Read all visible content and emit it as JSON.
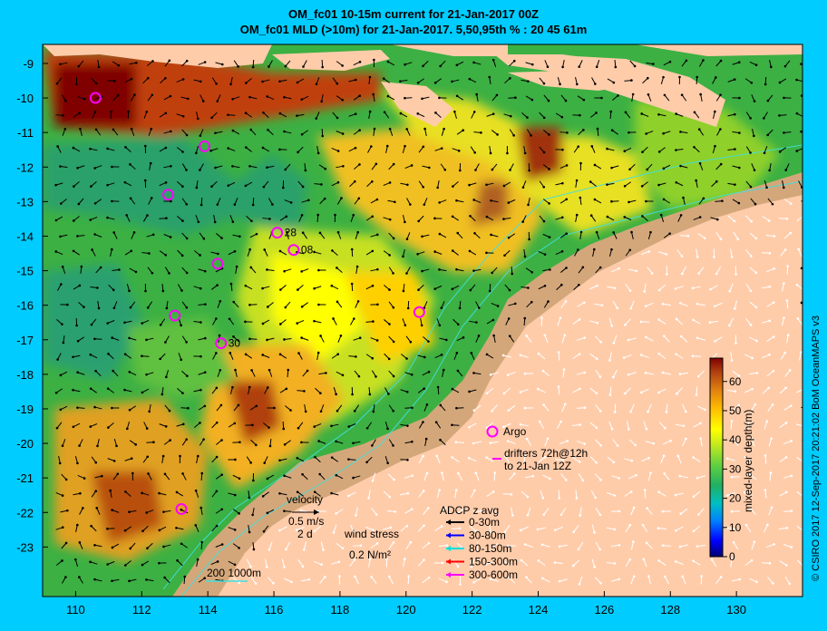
{
  "title_line1": "OM_fc01 10-15m current for 21-Jan-2017 00Z",
  "title_line2": "OM_fc01 MLD (>10m) for 21-Jan-2017. 5,50,95th % : 20  45  61m",
  "credit": "© CSIRO 2017   12-Sep-2017 20:21:02 BoM OceanMAPS v3",
  "axes": {
    "x_ticks": [
      "110",
      "112",
      "114",
      "116",
      "118",
      "120",
      "122",
      "124",
      "126",
      "128",
      "130"
    ],
    "y_ticks": [
      "-9",
      "-10",
      "-11",
      "-12",
      "-13",
      "-14",
      "-15",
      "-16",
      "-17",
      "-18",
      "-19",
      "-20",
      "-21",
      "-22",
      "-23"
    ]
  },
  "colorbar": {
    "label": "mixed-layer depth(m)",
    "ticks": [
      "0",
      "10",
      "20",
      "30",
      "40",
      "50",
      "60"
    ],
    "range": [
      0,
      68
    ]
  },
  "legend": {
    "velocity_label": "velocity",
    "velocity_scale": "0.5 m/s",
    "velocity_days": "2 d",
    "wind_label": "wind stress",
    "wind_scale": "0.2 N/m²",
    "adcp_title": "ADCP z avg",
    "adcp": [
      {
        "label": "0-30m",
        "color": "#000000"
      },
      {
        "label": "30-80m",
        "color": "#0000ff"
      },
      {
        "label": "80-150m",
        "color": "#00dddd"
      },
      {
        "label": "150-300m",
        "color": "#ff0000"
      },
      {
        "label": "300-600m",
        "color": "#ff00ff"
      }
    ],
    "argo_label": "Argo",
    "drifters_label_1": "drifters 72h@12h",
    "drifters_label_2": "to 21-Jan 12Z",
    "isobath_label": "200  1000m"
  },
  "argo_floats": [
    {
      "lon": 110.6,
      "lat": -10.0,
      "label": ""
    },
    {
      "lon": 113.9,
      "lat": -11.4,
      "label": ""
    },
    {
      "lon": 112.8,
      "lat": -12.8,
      "label": ""
    },
    {
      "lon": 116.1,
      "lat": -13.9,
      "label": "28"
    },
    {
      "lon": 116.6,
      "lat": -14.4,
      "label": "08"
    },
    {
      "lon": 114.3,
      "lat": -14.8,
      "label": ""
    },
    {
      "lon": 113.0,
      "lat": -16.3,
      "label": ""
    },
    {
      "lon": 120.4,
      "lat": -16.2,
      "label": ""
    },
    {
      "lon": 114.4,
      "lat": -17.1,
      "label": "30"
    },
    {
      "lon": 113.2,
      "lat": -21.9,
      "label": ""
    }
  ],
  "colors": {
    "frame": "#00ccff",
    "land": "#ffccaa",
    "shelf": "#d4a77a",
    "argo": "#ff00ff"
  }
}
